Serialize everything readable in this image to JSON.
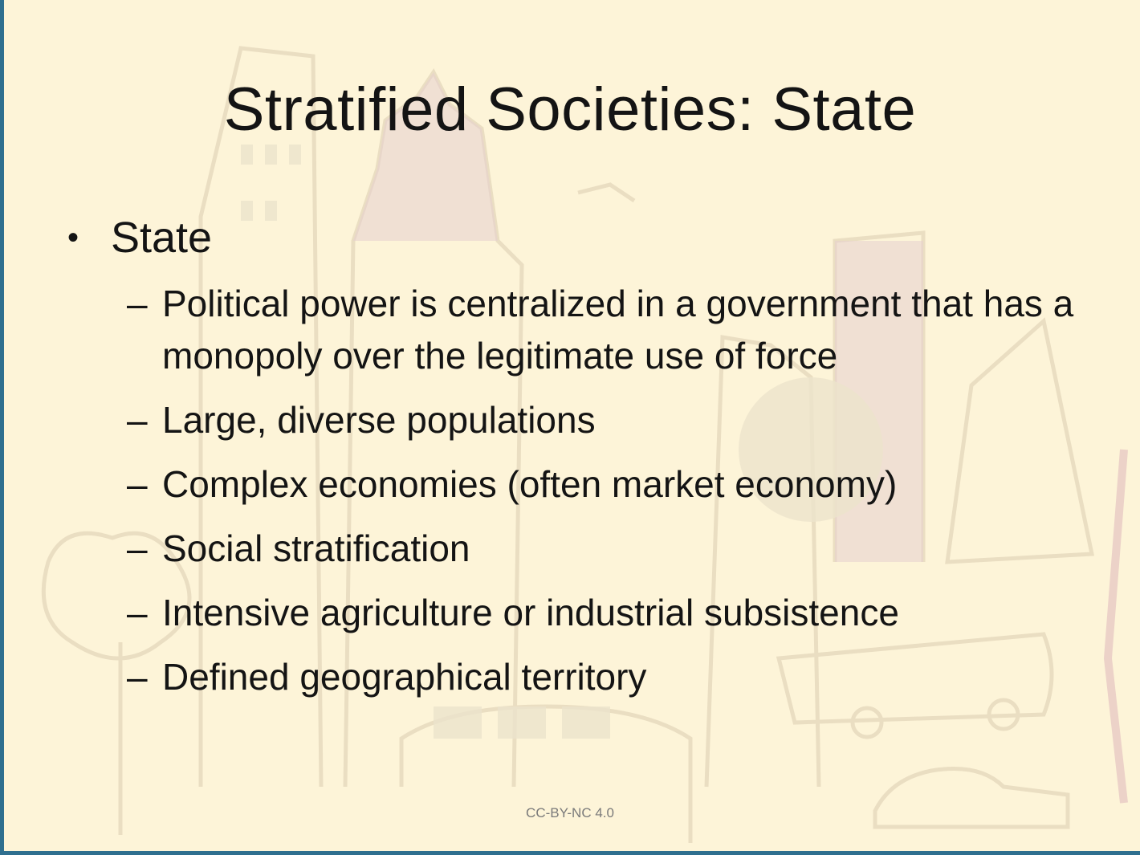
{
  "slide": {
    "title": "Stratified Societies: State",
    "bullet": {
      "marker": "•",
      "text": "State",
      "sub_marker": "–",
      "subitems": [
        "Political power is centralized in a government that has a monopoly over the legitimate use of force",
        "Large, diverse populations",
        "Complex economies (often market economy)",
        "Social stratification",
        "Intensive agriculture or industrial subsistence",
        "Defined geographical territory"
      ]
    },
    "footer": "CC-BY-NC 4.0"
  },
  "colors": {
    "background": "#fdf4d8",
    "frame": "#2f6f8f",
    "text": "#141414",
    "footer_text": "#7a7a7a"
  }
}
